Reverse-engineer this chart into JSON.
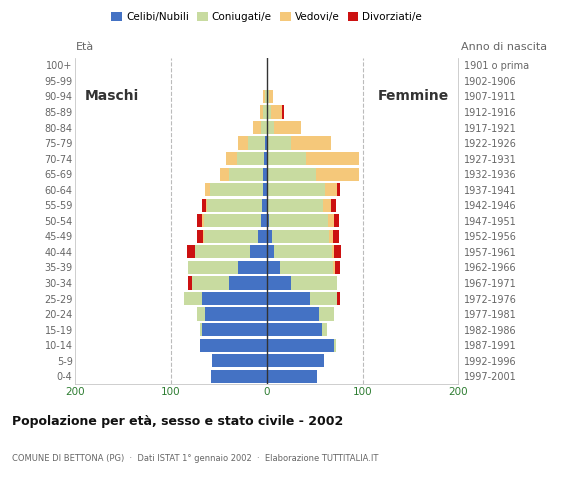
{
  "age_groups": [
    "0-4",
    "5-9",
    "10-14",
    "15-19",
    "20-24",
    "25-29",
    "30-34",
    "35-39",
    "40-44",
    "45-49",
    "50-54",
    "55-59",
    "60-64",
    "65-69",
    "70-74",
    "75-79",
    "80-84",
    "85-89",
    "90-94",
    "95-99",
    "100+"
  ],
  "birth_years": [
    "1997-2001",
    "1992-1996",
    "1987-1991",
    "1982-1986",
    "1977-1981",
    "1972-1976",
    "1967-1971",
    "1962-1966",
    "1957-1961",
    "1952-1956",
    "1947-1951",
    "1942-1946",
    "1937-1941",
    "1932-1936",
    "1927-1931",
    "1922-1926",
    "1917-1921",
    "1912-1916",
    "1907-1911",
    "1902-1906",
    "1901 o prima"
  ],
  "male_celibi": [
    58,
    57,
    70,
    68,
    65,
    68,
    40,
    30,
    18,
    9,
    6,
    5,
    4,
    4,
    3,
    2,
    0,
    0,
    0,
    0,
    0
  ],
  "male_coniugati": [
    0,
    0,
    0,
    2,
    8,
    18,
    38,
    52,
    57,
    57,
    60,
    57,
    55,
    35,
    28,
    18,
    6,
    4,
    2,
    0,
    0
  ],
  "male_vedovi": [
    0,
    0,
    0,
    0,
    0,
    0,
    0,
    0,
    0,
    1,
    2,
    2,
    6,
    10,
    12,
    10,
    8,
    3,
    2,
    0,
    0
  ],
  "male_divorziati": [
    0,
    0,
    0,
    0,
    0,
    0,
    4,
    0,
    8,
    6,
    5,
    4,
    0,
    0,
    0,
    0,
    0,
    0,
    0,
    0,
    0
  ],
  "female_nubili": [
    52,
    60,
    70,
    58,
    55,
    45,
    25,
    14,
    8,
    5,
    2,
    1,
    1,
    1,
    1,
    0,
    0,
    0,
    0,
    0,
    0
  ],
  "female_coniugate": [
    0,
    0,
    2,
    5,
    15,
    28,
    48,
    55,
    60,
    60,
    62,
    58,
    60,
    50,
    40,
    25,
    8,
    4,
    2,
    0,
    0
  ],
  "female_vedove": [
    0,
    0,
    0,
    0,
    0,
    0,
    0,
    2,
    2,
    4,
    6,
    8,
    12,
    45,
    55,
    42,
    28,
    12,
    5,
    0,
    0
  ],
  "female_divorziate": [
    0,
    0,
    0,
    0,
    0,
    4,
    0,
    6,
    8,
    6,
    5,
    5,
    4,
    0,
    0,
    0,
    0,
    2,
    0,
    0,
    0
  ],
  "color_celibi": "#4472c4",
  "color_coniugati": "#c8dba0",
  "color_vedovi": "#f5c87a",
  "color_divorziati": "#cc1111",
  "legend_labels": [
    "Celibi/Nubili",
    "Coniugati/e",
    "Vedovi/e",
    "Divorziati/e"
  ],
  "title": "Popolazione per età, sesso e stato civile - 2002",
  "subtitle": "COMUNE DI BETTONA (PG)  ·  Dati ISTAT 1° gennaio 2002  ·  Elaborazione TUTTITALIA.IT",
  "label_maschi": "Maschi",
  "label_femmine": "Femmine",
  "label_eta": "Età",
  "label_anno": "Anno di nascita",
  "xlim": 200,
  "bg_color": "#ffffff",
  "grid_color": "#bbbbbb",
  "text_color": "#666666",
  "title_color": "#111111",
  "bar_height": 0.85
}
